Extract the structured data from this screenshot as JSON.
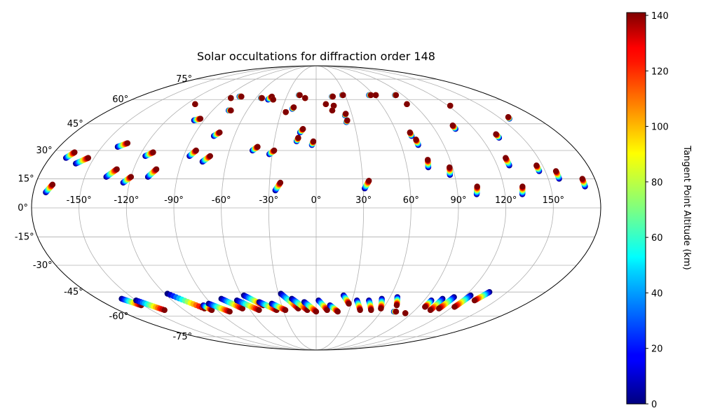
{
  "chart_data": {
    "type": "scatter",
    "projection": "mollweide",
    "title": "Solar occultations for diffraction order 148",
    "lon_ticks": [
      -150,
      -120,
      -90,
      -60,
      -30,
      0,
      30,
      60,
      90,
      120,
      150
    ],
    "lon_tick_labels": [
      "-150°",
      "-120°",
      "-90°",
      "-60°",
      "-30°",
      "0°",
      "30°",
      "60°",
      "90°",
      "120°",
      "150°"
    ],
    "lat_ticks": [
      -75,
      -60,
      -45,
      -30,
      -15,
      0,
      15,
      30,
      45,
      60,
      75
    ],
    "lat_tick_labels": [
      "-75°",
      "-60°",
      "-45°",
      "-30°",
      "-15°",
      "0°",
      "15°",
      "30°",
      "45°",
      "60°",
      "75°"
    ],
    "grid": true,
    "colorbar": {
      "label": "Tangent Point Altitude (km)",
      "range": [
        0,
        141
      ],
      "ticks": [
        0,
        20,
        40,
        60,
        80,
        100,
        120,
        140
      ],
      "tick_labels": [
        "0",
        "20",
        "40",
        "60",
        "80",
        "100",
        "120",
        "140"
      ],
      "colormap": "jet"
    },
    "tracks": [
      {
        "lon0": -172,
        "lat0": 8,
        "lon1": -169,
        "lat1": 12
      },
      {
        "lon0": -169,
        "lat0": 26,
        "lon1": -166,
        "lat1": 29
      },
      {
        "lon0": -160,
        "lat0": 23,
        "lon1": -154,
        "lat1": 26
      },
      {
        "lon0": -136,
        "lat0": 16,
        "lon1": -131,
        "lat1": 20
      },
      {
        "lon0": -139,
        "lat0": 32,
        "lon1": -134,
        "lat1": 34
      },
      {
        "lon0": -124,
        "lat0": 13,
        "lon1": -120,
        "lat1": 16
      },
      {
        "lon0": -116,
        "lat0": 27,
        "lon1": -112,
        "lat1": 29
      },
      {
        "lon0": -109,
        "lat0": 16,
        "lon1": -105,
        "lat1": 20
      },
      {
        "lon0": -98,
        "lat0": 47,
        "lon1": -94,
        "lat1": 48
      },
      {
        "lon0": -112,
        "lat0": 57,
        "lon1": -112,
        "lat1": 57
      },
      {
        "lon0": -86,
        "lat0": 27,
        "lon1": -83,
        "lat1": 30
      },
      {
        "lon0": -76,
        "lat0": 24,
        "lon1": -72,
        "lat1": 27
      },
      {
        "lon0": -75,
        "lat0": 38,
        "lon1": -72,
        "lat1": 40
      },
      {
        "lon0": -76,
        "lat0": 53,
        "lon1": -74,
        "lat1": 53
      },
      {
        "lon0": -85,
        "lat0": 61,
        "lon1": -85,
        "lat1": 61
      },
      {
        "lon0": -78,
        "lat0": 62,
        "lon1": -76,
        "lat1": 62
      },
      {
        "lon0": -55,
        "lat0": 61,
        "lon1": -54,
        "lat1": 61
      },
      {
        "lon0": -47,
        "lat0": 60,
        "lon1": -45,
        "lat1": 62
      },
      {
        "lon0": -42,
        "lat0": 60,
        "lon1": -42,
        "lat1": 60
      },
      {
        "lon0": -44,
        "lat0": 30,
        "lon1": -41,
        "lat1": 32
      },
      {
        "lon0": -32,
        "lat0": 28,
        "lon1": -29,
        "lat1": 30
      },
      {
        "lon0": -26,
        "lat0": 9,
        "lon1": -23,
        "lat1": 13
      },
      {
        "lon0": -26,
        "lat0": 52,
        "lon1": -26,
        "lat1": 52
      },
      {
        "lon0": -21,
        "lat0": 54,
        "lon1": -20,
        "lat1": 55
      },
      {
        "lon0": -18,
        "lat0": 63,
        "lon1": -17,
        "lat1": 63
      },
      {
        "lon0": -11,
        "lat0": 61,
        "lon1": -11,
        "lat1": 61
      },
      {
        "lon0": -14,
        "lat0": 35,
        "lon1": -13,
        "lat1": 37
      },
      {
        "lon0": -12,
        "lat0": 40,
        "lon1": -10,
        "lat1": 42
      },
      {
        "lon0": -3,
        "lat0": 33,
        "lon1": -2,
        "lat1": 35
      },
      {
        "lon0": 9,
        "lat0": 57,
        "lon1": 9,
        "lat1": 57
      },
      {
        "lon0": 16,
        "lat0": 56,
        "lon1": 16,
        "lat1": 56
      },
      {
        "lon0": 16,
        "lat0": 62,
        "lon1": 17,
        "lat1": 62
      },
      {
        "lon0": 14,
        "lat0": 53,
        "lon1": 14,
        "lat1": 53
      },
      {
        "lon0": 27,
        "lat0": 63,
        "lon1": 28,
        "lat1": 63
      },
      {
        "lon0": 24,
        "lat0": 46,
        "lon1": 25,
        "lat1": 47
      },
      {
        "lon0": 24,
        "lat0": 50,
        "lon1": 25,
        "lat1": 51
      },
      {
        "lon0": 31,
        "lat0": 10,
        "lon1": 34,
        "lat1": 14
      },
      {
        "lon0": 55,
        "lat0": 63,
        "lon1": 57,
        "lat1": 63
      },
      {
        "lon0": 62,
        "lat0": 63,
        "lon1": 62,
        "lat1": 63
      },
      {
        "lon0": 82,
        "lat0": 63,
        "lon1": 83,
        "lat1": 63
      },
      {
        "lon0": 84,
        "lat0": 57,
        "lon1": 84,
        "lat1": 57
      },
      {
        "lon0": 70,
        "lat0": 38,
        "lon1": 70,
        "lat1": 40
      },
      {
        "lon0": 72,
        "lat0": 33,
        "lon1": 72,
        "lat1": 36
      },
      {
        "lon0": 74,
        "lat0": 21,
        "lon1": 75,
        "lat1": 25
      },
      {
        "lon0": 87,
        "lat0": 17,
        "lon1": 88,
        "lat1": 21
      },
      {
        "lon0": 102,
        "lat0": 7,
        "lon1": 103,
        "lat1": 11
      },
      {
        "lon0": 106,
        "lat0": 42,
        "lon1": 106,
        "lat1": 44
      },
      {
        "lon0": 122,
        "lat0": 56,
        "lon1": 122,
        "lat1": 56
      },
      {
        "lon0": 128,
        "lat0": 22,
        "lon1": 128,
        "lat1": 26
      },
      {
        "lon0": 131,
        "lat0": 7,
        "lon1": 132,
        "lat1": 11
      },
      {
        "lon0": 133,
        "lat0": 37,
        "lon1": 133,
        "lat1": 39
      },
      {
        "lon0": 146,
        "lat0": 19,
        "lon1": 146,
        "lat1": 22
      },
      {
        "lon0": 157,
        "lat0": 15,
        "lon1": 157,
        "lat1": 19
      },
      {
        "lon0": 172,
        "lat0": 11,
        "lon1": 172,
        "lat1": 15
      },
      {
        "lon0": 157,
        "lat0": 48,
        "lon1": 158,
        "lat1": 49
      },
      {
        "lon0": -160,
        "lat0": -49,
        "lon1": -152,
        "lat1": -53
      },
      {
        "lon0": -150,
        "lat0": -50,
        "lon1": -138,
        "lat1": -56
      },
      {
        "lon0": -118,
        "lat0": -46,
        "lon1": -100,
        "lat1": -55
      },
      {
        "lon0": -98,
        "lat0": -53,
        "lon1": -95,
        "lat1": -56
      },
      {
        "lon0": -92,
        "lat0": -52,
        "lon1": -80,
        "lat1": -57
      },
      {
        "lon0": -78,
        "lat0": -49,
        "lon1": -66,
        "lat1": -55
      },
      {
        "lon0": -66,
        "lat0": -50,
        "lon1": -52,
        "lat1": -56
      },
      {
        "lon0": -58,
        "lat0": -47,
        "lon1": -46,
        "lat1": -53
      },
      {
        "lon0": -48,
        "lat0": -51,
        "lon1": -36,
        "lat1": -56
      },
      {
        "lon0": -38,
        "lat0": -52,
        "lon1": -28,
        "lat1": -56
      },
      {
        "lon0": -28,
        "lat0": -46,
        "lon1": -16,
        "lat1": -55
      },
      {
        "lon0": -20,
        "lat0": -49,
        "lon1": -8,
        "lat1": -56
      },
      {
        "lon0": -10,
        "lat0": -51,
        "lon1": 0,
        "lat1": -57
      },
      {
        "lon0": 2,
        "lat0": -50,
        "lon1": 10,
        "lat1": -56
      },
      {
        "lon0": 12,
        "lat0": -53,
        "lon1": 20,
        "lat1": -57
      },
      {
        "lon0": 22,
        "lat0": -47,
        "lon1": 28,
        "lat1": -52
      },
      {
        "lon0": 34,
        "lat0": -50,
        "lon1": 40,
        "lat1": -56
      },
      {
        "lon0": 44,
        "lat0": -50,
        "lon1": 50,
        "lat1": -56
      },
      {
        "lon0": 54,
        "lat0": -49,
        "lon1": 58,
        "lat1": -55
      },
      {
        "lon0": 66,
        "lat0": -48,
        "lon1": 70,
        "lat1": -53
      },
      {
        "lon0": 72,
        "lat0": -57,
        "lon1": 74,
        "lat1": -57
      },
      {
        "lon0": 84,
        "lat0": -58,
        "lon1": 84,
        "lat1": -58
      },
      {
        "lon0": 96,
        "lat0": -50,
        "lon1": 96,
        "lat1": -54
      },
      {
        "lon0": 104,
        "lat0": -49,
        "lon1": 104,
        "lat1": -56
      },
      {
        "lon0": 112,
        "lat0": -48,
        "lon1": 110,
        "lat1": -55
      },
      {
        "lon0": 124,
        "lat0": -47,
        "lon1": 122,
        "lat1": -54
      },
      {
        "lon0": 136,
        "lat0": -45,
        "lon1": 132,
        "lat1": -50
      }
    ]
  }
}
